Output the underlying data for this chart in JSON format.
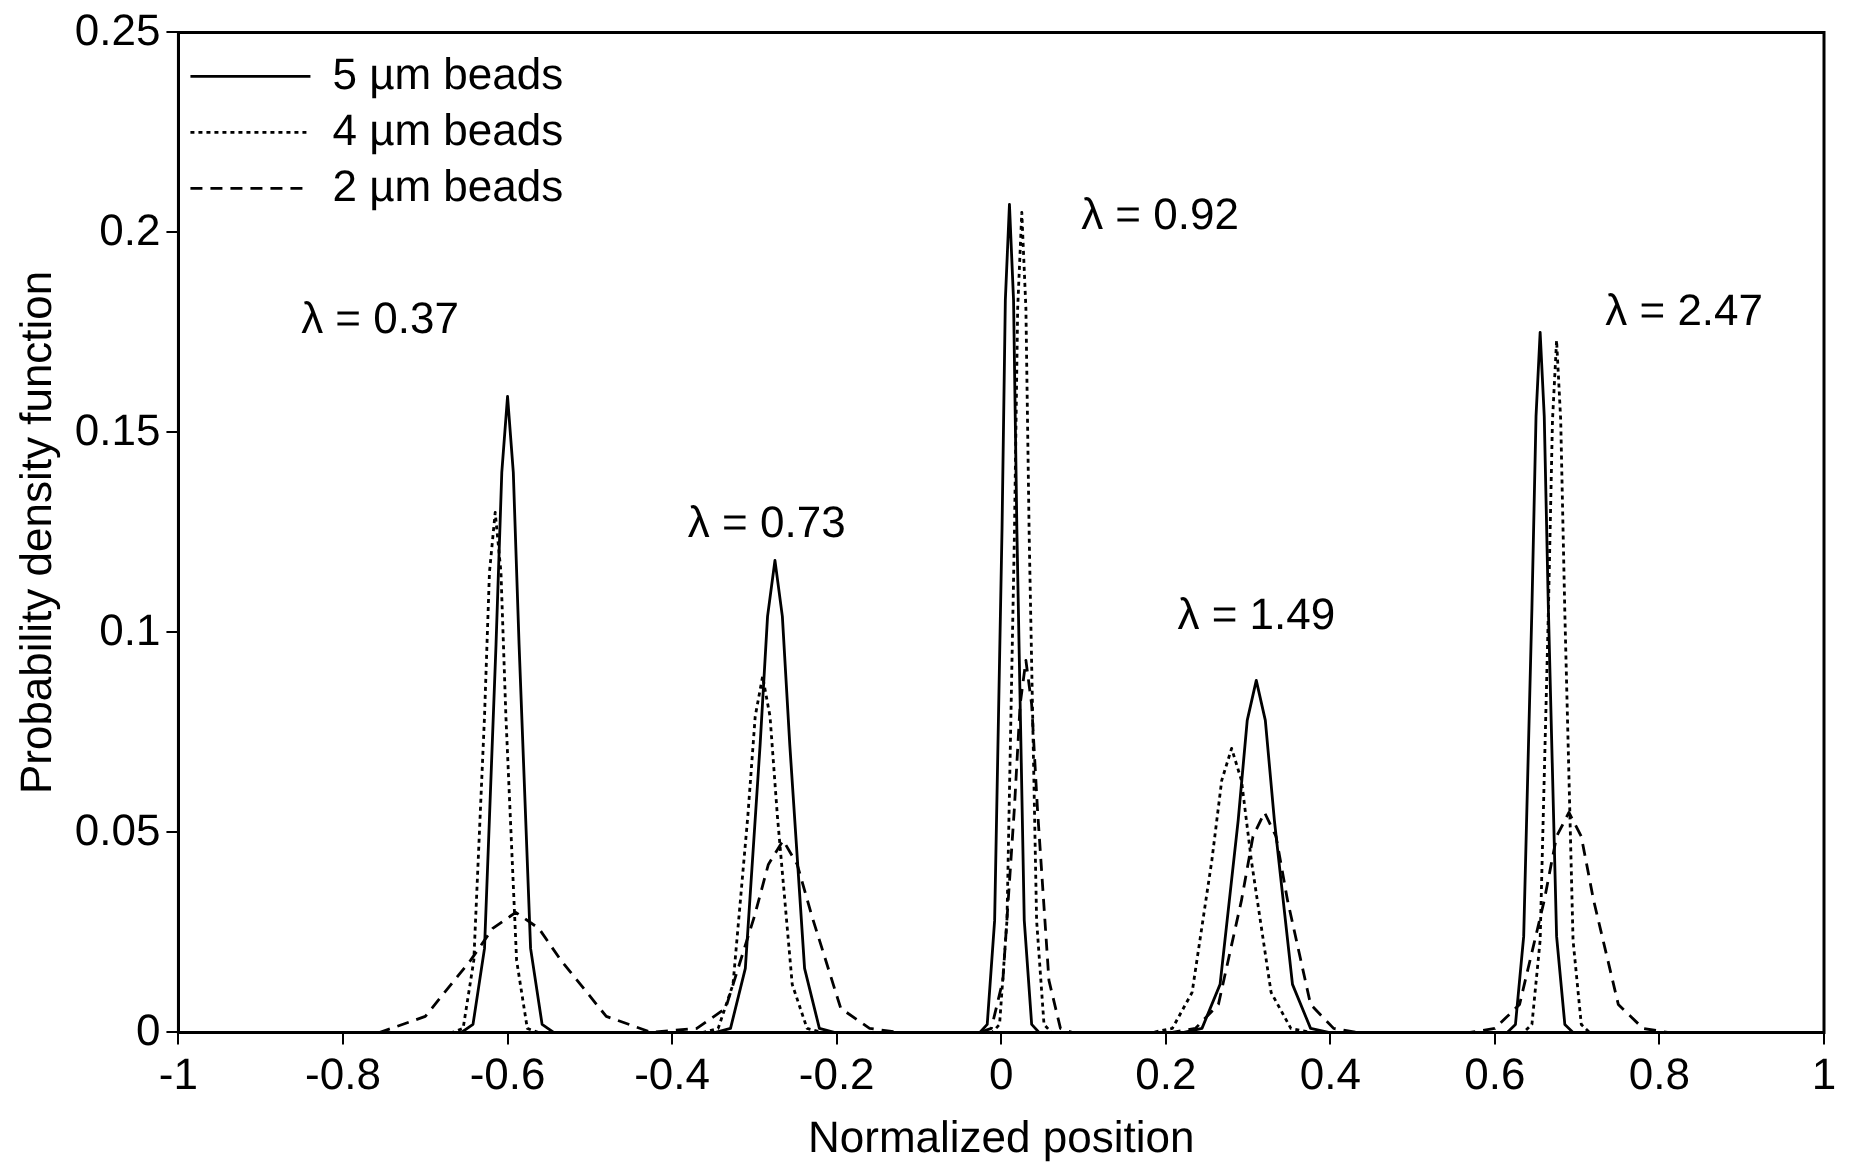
{
  "chart_data": {
    "type": "line",
    "xlabel": "Normalized position",
    "ylabel": "Probability density function",
    "xlim": [
      -1,
      1
    ],
    "xticks": [
      -1,
      -0.8,
      -0.6,
      -0.4,
      -0.2,
      0,
      0.2,
      0.4,
      0.6,
      0.8,
      1
    ],
    "ylim": [
      0,
      0.25
    ],
    "yticks": [
      0,
      0.05,
      0.1,
      0.15,
      0.2,
      0.25
    ],
    "grid": false,
    "legend": "top left",
    "marker": "none",
    "series": [
      {
        "name": "5 µm beads",
        "color": "#000000",
        "line_style": "solid",
        "x": [
          -1,
          -0.656,
          -0.642,
          -0.628,
          -0.614,
          -0.607,
          -0.6,
          -0.593,
          -0.586,
          -0.572,
          -0.558,
          -0.544,
          -0.347,
          -0.329,
          -0.311,
          -0.293,
          -0.284,
          -0.275,
          -0.266,
          -0.257,
          -0.239,
          -0.221,
          -0.203,
          -0.026,
          -0.017,
          -0.008,
          0.001,
          0.005,
          0.01,
          0.015,
          0.019,
          0.028,
          0.037,
          0.046,
          0.222,
          0.244,
          0.266,
          0.288,
          0.299,
          0.31,
          0.321,
          0.332,
          0.354,
          0.376,
          0.398,
          0.615,
          0.625,
          0.635,
          0.645,
          0.65,
          0.655,
          0.66,
          0.665,
          0.675,
          0.685,
          0.695,
          1
        ],
        "values": [
          0,
          0,
          0.002,
          0.021,
          0.097,
          0.14,
          0.159,
          0.14,
          0.097,
          0.021,
          0.002,
          0,
          0,
          0.001,
          0.016,
          0.072,
          0.104,
          0.118,
          0.104,
          0.072,
          0.016,
          0.001,
          0,
          0,
          0.002,
          0.028,
          0.126,
          0.183,
          0.207,
          0.183,
          0.126,
          0.028,
          0.002,
          0,
          0,
          0.001,
          0.012,
          0.053,
          0.078,
          0.088,
          0.078,
          0.053,
          0.012,
          0.001,
          0,
          0,
          0.002,
          0.024,
          0.106,
          0.154,
          0.175,
          0.154,
          0.106,
          0.024,
          0.002,
          0,
          0
        ]
      },
      {
        "name": "4 µm beads",
        "color": "#000000",
        "line_style": "dotted",
        "x": [
          -1,
          -0.667,
          -0.654,
          -0.641,
          -0.628,
          -0.622,
          -0.615,
          -0.608,
          -0.602,
          -0.589,
          -0.576,
          -0.563,
          -0.362,
          -0.344,
          -0.326,
          -0.308,
          -0.299,
          -0.29,
          -0.281,
          -0.272,
          -0.254,
          -0.236,
          -0.218,
          -0.011,
          -0.002,
          0.007,
          0.016,
          0.02,
          0.025,
          0.03,
          0.034,
          0.043,
          0.052,
          0.061,
          0.184,
          0.208,
          0.232,
          0.256,
          0.268,
          0.28,
          0.292,
          0.304,
          0.328,
          0.352,
          0.376,
          0.635,
          0.645,
          0.655,
          0.665,
          0.67,
          0.675,
          0.68,
          0.685,
          0.695,
          0.705,
          0.715,
          1
        ],
        "values": [
          0,
          0,
          0.001,
          0.018,
          0.079,
          0.115,
          0.13,
          0.115,
          0.079,
          0.018,
          0.001,
          0,
          0,
          0.001,
          0.012,
          0.054,
          0.079,
          0.089,
          0.079,
          0.054,
          0.012,
          0.001,
          0,
          0,
          0.002,
          0.028,
          0.124,
          0.181,
          0.205,
          0.181,
          0.124,
          0.028,
          0.002,
          0,
          0,
          0.001,
          0.01,
          0.043,
          0.063,
          0.071,
          0.063,
          0.043,
          0.01,
          0.001,
          0,
          0,
          0.002,
          0.023,
          0.105,
          0.153,
          0.173,
          0.153,
          0.105,
          0.023,
          0.002,
          0,
          0
        ]
      },
      {
        "name": "2 µm beads",
        "color": "#000000",
        "line_style": "dashed",
        "x": [
          -1,
          -0.81,
          -0.755,
          -0.7,
          -0.645,
          -0.618,
          -0.59,
          -0.562,
          -0.535,
          -0.48,
          -0.425,
          -0.37,
          -0.335,
          -0.3,
          -0.283,
          -0.265,
          -0.248,
          -0.23,
          -0.195,
          -0.16,
          -0.125,
          -0.026,
          -0.012,
          0.002,
          0.016,
          0.023,
          0.03,
          0.037,
          0.044,
          0.058,
          0.072,
          0.086,
          0.208,
          0.236,
          0.264,
          0.292,
          0.306,
          0.32,
          0.334,
          0.348,
          0.376,
          0.404,
          0.432,
          0.57,
          0.6,
          0.63,
          0.66,
          0.675,
          0.69,
          0.705,
          0.72,
          0.75,
          0.78,
          0.81,
          1
        ],
        "values": [
          0,
          0,
          0,
          0.004,
          0.018,
          0.026,
          0.03,
          0.026,
          0.018,
          0.004,
          0,
          0.001,
          0.006,
          0.029,
          0.042,
          0.048,
          0.042,
          0.029,
          0.006,
          0.001,
          0,
          0,
          0.001,
          0.013,
          0.056,
          0.082,
          0.093,
          0.082,
          0.056,
          0.013,
          0.001,
          0,
          0,
          0.001,
          0.007,
          0.033,
          0.049,
          0.055,
          0.049,
          0.033,
          0.007,
          0.001,
          0,
          0,
          0.001,
          0.007,
          0.033,
          0.049,
          0.055,
          0.049,
          0.033,
          0.007,
          0.001,
          0,
          0
        ]
      }
    ],
    "annotations": [
      "λ = 0.37",
      "λ = 0.73",
      "λ = 0.92",
      "λ = 1.49",
      "λ = 2.47"
    ]
  }
}
